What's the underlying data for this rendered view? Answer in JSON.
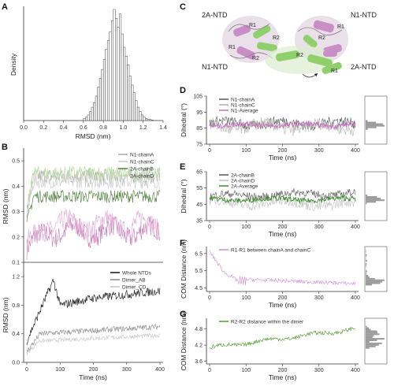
{
  "panels": {
    "A": {
      "letter": "A",
      "chart_data": {
        "type": "histogram",
        "xlabel": "RMSD (nm)",
        "ylabel": "Density",
        "xlim": [
          0.0,
          1.4
        ],
        "xticks": [
          "0.0",
          "0.2",
          "0.4",
          "0.6",
          "0.8",
          "1.0",
          "1.2",
          "1.4"
        ],
        "bin_width": 0.02,
        "bins_start": 0.6,
        "values": [
          0.02,
          0.03,
          0.05,
          0.08,
          0.12,
          0.16,
          0.22,
          0.3,
          0.38,
          0.46,
          0.55,
          0.64,
          0.72,
          0.8,
          0.9,
          1.0,
          0.92,
          0.84,
          0.96,
          0.78,
          0.66,
          0.58,
          0.5,
          0.4,
          0.32,
          0.25,
          0.18,
          0.12,
          0.08,
          0.05,
          0.03,
          0.02,
          0.01,
          0.01,
          0.005
        ]
      }
    },
    "B": {
      "letter": "B",
      "top": {
        "chart_data": {
          "type": "line",
          "ylabel": "RMSD (nm)",
          "yticks": [
            "0.1",
            "0.2",
            "0.3",
            "0.4",
            "0.5"
          ],
          "ylim": [
            0.1,
            0.55
          ],
          "xlim": [
            0,
            400
          ],
          "legend": [
            "N1-chainA",
            "N1-chainC",
            "2A-chainB",
            "2A-chainD"
          ],
          "series": [
            {
              "name": "N1-chainA",
              "color": "#a9a9a9",
              "base": 0.44,
              "amp": 0.03,
              "start": 0.3
            },
            {
              "name": "N1-chainC",
              "color": "#c8c8c8",
              "base": 0.42,
              "amp": 0.03,
              "start": 0.28
            },
            {
              "name": "2A-chainB",
              "color": "#4f7f3a",
              "base": 0.36,
              "amp": 0.025,
              "start": 0.25
            },
            {
              "name": "2A-chainD",
              "color": "#b8dba0",
              "base": 0.45,
              "amp": 0.03,
              "start": 0.3
            }
          ],
          "pink_series": [
            {
              "name": "pink1",
              "color": "#c37ab5",
              "base": 0.22,
              "amp": 0.05,
              "start": 0.15
            },
            {
              "name": "pink2",
              "color": "#e3a9d6",
              "base": 0.25,
              "amp": 0.05,
              "start": 0.16
            }
          ]
        }
      },
      "bottom": {
        "chart_data": {
          "type": "line",
          "xlabel": "Time (ns)",
          "ylabel": "RMSD (nm)",
          "yticks": [
            "0.0",
            "0.4",
            "0.8",
            "1.2"
          ],
          "ylim": [
            0.0,
            1.4
          ],
          "xticks": [
            "0",
            "100",
            "200",
            "300",
            "400"
          ],
          "xlim": [
            0,
            400
          ],
          "legend": [
            "Whole NTDs",
            "Dimer_AB",
            "Dimer_CD"
          ],
          "series": [
            {
              "name": "Whole NTDs",
              "color": "#111111",
              "profile": "whole"
            },
            {
              "name": "Dimer_AB",
              "color": "#888888",
              "profile": "ab"
            },
            {
              "name": "Dimer_CD",
              "color": "#c4c4c4",
              "profile": "cd"
            }
          ]
        }
      }
    },
    "C": {
      "letter": "C",
      "labels": {
        "tl": "2A-NTD",
        "tr": "N1-NTD",
        "bl": "N1-NTD",
        "br": "2A-NTD",
        "r1a": "R1",
        "r2a": "R2",
        "r1b": "R1",
        "r2b": "R2",
        "r2c": "R2",
        "r2d": "R2",
        "r1c": "R1",
        "r1d": "R1"
      }
    },
    "D": {
      "letter": "D",
      "chart_data": {
        "type": "line",
        "xlabel": "Time (ns)",
        "ylabel": "Dihedral (°)",
        "yticks": [
          "75",
          "85",
          "95",
          "105"
        ],
        "ylim": [
          75,
          105
        ],
        "xticks": [
          "0",
          "100",
          "200",
          "300",
          "400"
        ],
        "xlim": [
          0,
          400
        ],
        "legend": [
          "N1-chainA",
          "N1-chainC",
          "N1-Average"
        ],
        "series": [
          {
            "name": "N1-chainA",
            "color": "#555555",
            "base": 88,
            "amp": 4
          },
          {
            "name": "N1-chainC",
            "color": "#b0b0b0",
            "base": 86,
            "amp": 5
          },
          {
            "name": "N1-Average",
            "color": "#c86fbf",
            "base": 87,
            "amp": 2
          }
        ]
      }
    },
    "E": {
      "letter": "E",
      "chart_data": {
        "type": "line",
        "xlabel": "Time (ns)",
        "ylabel": "Dihedral (°)",
        "yticks": [
          "35",
          "45",
          "55",
          "65"
        ],
        "ylim": [
          35,
          65
        ],
        "xticks": [
          "0",
          "100",
          "200",
          "300",
          "400"
        ],
        "xlim": [
          0,
          400
        ],
        "legend": [
          "2A-chainB",
          "2A-chainD",
          "2A-Average"
        ],
        "series": [
          {
            "name": "2A-chainB",
            "color": "#555555",
            "base": 50,
            "amp": 3
          },
          {
            "name": "2A-chainD",
            "color": "#c0c0c0",
            "base": 46,
            "amp": 4
          },
          {
            "name": "2A-Average",
            "color": "#3e8a2f",
            "base": 48,
            "amp": 2
          }
        ]
      }
    },
    "F": {
      "letter": "F",
      "chart_data": {
        "type": "line",
        "xlabel": "Time (ns)",
        "ylabel": "COM Distance (nm)",
        "yticks": [
          "4.5",
          "5.5",
          "6.5"
        ],
        "ylim": [
          4.3,
          6.9
        ],
        "xticks": [
          "0",
          "100",
          "200",
          "300",
          "400"
        ],
        "xlim": [
          0,
          400
        ],
        "legend": [
          "R1-R1 between chainA and chainC"
        ],
        "series": [
          {
            "name": "R1-R1 between chainA and chainC",
            "color": "#d08bd1"
          }
        ]
      }
    },
    "G": {
      "letter": "G",
      "chart_data": {
        "type": "line",
        "xlabel": "Time (ns)",
        "ylabel": "COM Distance (nm)",
        "yticks": [
          "3.6",
          "4.2",
          "4.8"
        ],
        "ylim": [
          3.5,
          5.2
        ],
        "xticks": [
          "0",
          "100",
          "200",
          "300",
          "400"
        ],
        "xlim": [
          0,
          400
        ],
        "legend": [
          "R2-R2 distance within the dimer"
        ],
        "series": [
          {
            "name": "R2-R2 distance within the dimer",
            "color": "#4f9a2e"
          }
        ]
      }
    }
  }
}
